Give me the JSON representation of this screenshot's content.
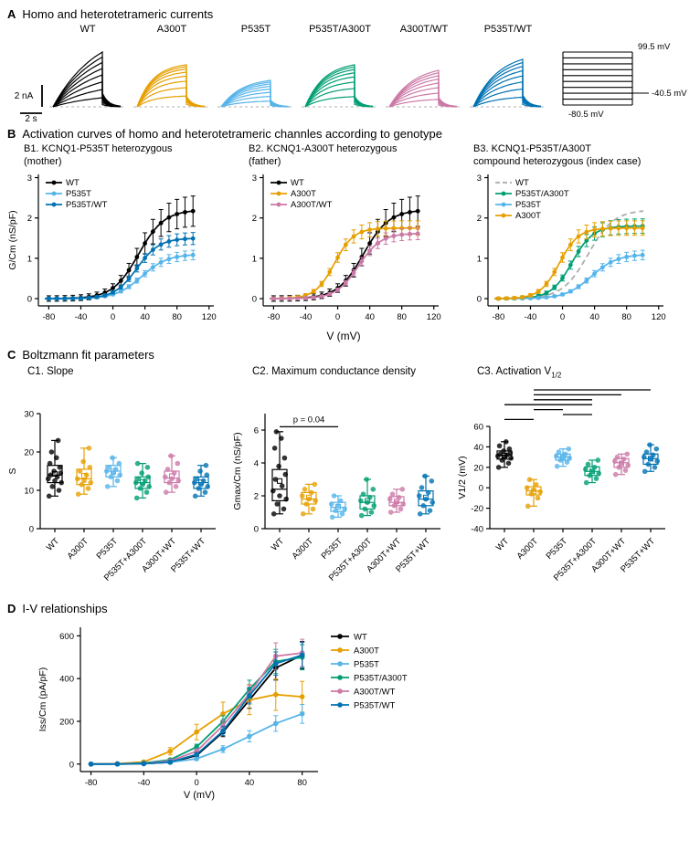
{
  "figure": {
    "panels": {
      "A": {
        "label": "A",
        "title": "Homo and heterotetrameric currents"
      },
      "B": {
        "label": "B",
        "title": "Activation curves of homo and heterotetrameric channles according to genotype"
      },
      "C": {
        "label": "C",
        "title": "Boltzmann fit parameters"
      },
      "D": {
        "label": "D",
        "title": "I-V relationships"
      }
    }
  },
  "colors": {
    "WT": "#000000",
    "A300T": "#E69F00",
    "P535T": "#56B4E9",
    "P535T/A300T": "#009E73",
    "A300T/WT": "#CC79A7",
    "P535T/WT": "#0072B2",
    "WT_dashed": "#A9A9A9"
  },
  "panel_a": {
    "scalebar": {
      "v": "2 nA",
      "h": "2 s"
    },
    "traces": [
      {
        "label": "WT",
        "color": "#000000",
        "amp": 60,
        "tau": 0.9,
        "bunch": 1.5,
        "n": 8
      },
      {
        "label": "A300T",
        "color": "#E69F00",
        "amp": 46,
        "tau": 0.33,
        "bunch": 0.5,
        "n": 8
      },
      {
        "label": "P535T",
        "color": "#56B4E9",
        "amp": 29,
        "tau": 0.42,
        "bunch": 0.7,
        "n": 8
      },
      {
        "label": "P535T/A300T",
        "color": "#009E73",
        "amp": 46,
        "tau": 0.38,
        "bunch": 0.55,
        "n": 8
      },
      {
        "label": "A300T/WT",
        "color": "#CC79A7",
        "amp": 40,
        "tau": 0.5,
        "bunch": 0.8,
        "n": 8
      },
      {
        "label": "P535T/WT",
        "color": "#0072B2",
        "amp": 52,
        "tau": 0.5,
        "bunch": 0.8,
        "n": 8
      }
    ],
    "protocol": {
      "top": "99.5 mV",
      "tail": "-40.5 mV",
      "bottom": "-80.5 mV"
    }
  },
  "chart_data": [
    {
      "id": "B1",
      "type": "activation",
      "title_lines": [
        "B1. KCNQ1-P535T heterozygous",
        "(mother)"
      ],
      "xlabel": "V (mV)",
      "ylabel": "G/Cm (nS/pF)",
      "xlim": [
        -93,
        126
      ],
      "ylim": [
        -0.18,
        3.08
      ],
      "xticks": [
        -80,
        -40,
        0,
        40,
        80,
        120
      ],
      "yticks": [
        0,
        1,
        2,
        3
      ],
      "x": [
        -80,
        -60,
        -40,
        -20,
        0,
        20,
        40,
        60,
        80,
        100
      ],
      "series": [
        {
          "label": "WT",
          "color": "#000000",
          "gmax": 2.2,
          "v_half": 32,
          "k": 16,
          "err": 0.38,
          "y": [
            0,
            0.01,
            0.02,
            0.08,
            0.26,
            0.71,
            1.37,
            1.87,
            2.1,
            2.17
          ]
        },
        {
          "label": "P535T",
          "color": "#56B4E9",
          "gmax": 1.1,
          "v_half": 36,
          "k": 16,
          "err": 0.12,
          "y": [
            0,
            0,
            0.01,
            0.03,
            0.1,
            0.3,
            0.62,
            0.9,
            1.03,
            1.08
          ]
        },
        {
          "label": "P535T/WT",
          "color": "#0072B2",
          "gmax": 1.5,
          "v_half": 30,
          "k": 14,
          "err": 0.15,
          "y": [
            0,
            0,
            0.01,
            0.04,
            0.16,
            0.49,
            1.01,
            1.34,
            1.46,
            1.49
          ]
        }
      ]
    },
    {
      "id": "B2",
      "type": "activation",
      "title_lines": [
        "B2. KCNQ1-A300T heterozygous",
        "(father)"
      ],
      "xlabel": "V (mV)",
      "ylabel": "",
      "xlim": [
        -93,
        126
      ],
      "ylim": [
        -0.18,
        3.08
      ],
      "xticks": [
        -80,
        -40,
        0,
        40,
        80,
        120
      ],
      "yticks": [
        0,
        1,
        2,
        3
      ],
      "x": [
        -80,
        -60,
        -40,
        -20,
        0,
        20,
        40,
        60,
        80,
        100
      ],
      "series": [
        {
          "label": "WT",
          "color": "#000000",
          "gmax": 2.2,
          "v_half": 32,
          "k": 16,
          "err": 0.38,
          "y": [
            0,
            0.01,
            0.02,
            0.08,
            0.26,
            0.71,
            1.37,
            1.87,
            2.1,
            2.17
          ]
        },
        {
          "label": "A300T",
          "color": "#E69F00",
          "gmax": 1.75,
          "v_half": -4,
          "k": 12,
          "err": 0.18,
          "y": [
            0,
            0.02,
            0.08,
            0.37,
            1.02,
            1.54,
            1.71,
            1.74,
            1.75,
            1.75
          ]
        },
        {
          "label": "A300T/WT",
          "color": "#CC79A7",
          "gmax": 1.62,
          "v_half": 26,
          "k": 14,
          "err": 0.15,
          "y": [
            0,
            0,
            0.01,
            0.06,
            0.22,
            0.64,
            1.18,
            1.49,
            1.59,
            1.61
          ]
        }
      ]
    },
    {
      "id": "B3",
      "type": "activation",
      "title_lines": [
        "B3. KCNQ1-P535T/A300T",
        "compound heterozygous (index case)"
      ],
      "xlabel": "V (mV)",
      "ylabel": "",
      "xlim": [
        -93,
        126
      ],
      "ylim": [
        -0.18,
        3.08
      ],
      "xticks": [
        -80,
        -40,
        0,
        40,
        80,
        120
      ],
      "yticks": [
        0,
        1,
        2,
        3
      ],
      "x": [
        -80,
        -60,
        -40,
        -20,
        0,
        20,
        40,
        60,
        80,
        100
      ],
      "series": [
        {
          "label": "WT",
          "color": "#A9A9A9",
          "dashed": true,
          "no_marker": true,
          "gmax": 2.2,
          "v_half": 32,
          "k": 16,
          "err": 0,
          "y": [
            0,
            0.01,
            0.02,
            0.08,
            0.26,
            0.71,
            1.37,
            1.87,
            2.1,
            2.17
          ]
        },
        {
          "label": "P535T/A300T",
          "color": "#009E73",
          "gmax": 1.8,
          "v_half": 12,
          "k": 13,
          "err": 0.18,
          "y": [
            0,
            0.01,
            0.03,
            0.14,
            0.51,
            1.17,
            1.61,
            1.76,
            1.79,
            1.8
          ]
        },
        {
          "label": "P535T",
          "color": "#56B4E9",
          "gmax": 1.1,
          "v_half": 36,
          "k": 16,
          "err": 0.12,
          "y": [
            0,
            0,
            0.01,
            0.03,
            0.1,
            0.3,
            0.62,
            0.9,
            1.03,
            1.08
          ]
        },
        {
          "label": "A300T",
          "color": "#E69F00",
          "gmax": 1.75,
          "v_half": -4,
          "k": 12,
          "err": 0.18,
          "y": [
            0,
            0.02,
            0.08,
            0.37,
            1.02,
            1.54,
            1.71,
            1.74,
            1.75,
            1.75
          ]
        }
      ]
    },
    {
      "id": "C1",
      "type": "box",
      "title": "C1. Slope",
      "ylabel": "S",
      "ylim": [
        0,
        30
      ],
      "yticks": [
        0,
        10,
        20,
        30
      ],
      "top_margin": 34,
      "categories": [
        "WT",
        "A300T",
        "P535T",
        "P535T+A300T",
        "A300T+WT",
        "P535T+WT"
      ],
      "colors": [
        "#000000",
        "#E69F00",
        "#56B4E9",
        "#009E73",
        "#CC79A7",
        "#0072B2"
      ],
      "groups": [
        {
          "lo": 8.5,
          "q1": 12,
          "med": 14,
          "q3": 16.5,
          "hi": 23,
          "mean": 14.3,
          "points": [
            8.5,
            10,
            11,
            12,
            12.5,
            13,
            13.5,
            14,
            14.5,
            15,
            16,
            17,
            18.5,
            20,
            23
          ]
        },
        {
          "lo": 9,
          "q1": 11.5,
          "med": 13,
          "q3": 15.5,
          "hi": 21,
          "mean": 13.8,
          "points": [
            9,
            10.5,
            11.5,
            12,
            12.5,
            13,
            14,
            15,
            16,
            17.5,
            21
          ]
        },
        {
          "lo": 11,
          "q1": 13.5,
          "med": 15,
          "q3": 16.5,
          "hi": 18.5,
          "mean": 14.9,
          "points": [
            11,
            12.5,
            13.5,
            14,
            14.5,
            15,
            15.5,
            16,
            17,
            18.5
          ]
        },
        {
          "lo": 8,
          "q1": 10.5,
          "med": 12,
          "q3": 13.5,
          "hi": 17,
          "mean": 12.2,
          "points": [
            8,
            9.5,
            10.5,
            11,
            11.5,
            12,
            12.5,
            13,
            13.5,
            14.5,
            16,
            17
          ]
        },
        {
          "lo": 9.5,
          "q1": 12,
          "med": 13.2,
          "q3": 15,
          "hi": 19,
          "mean": 13.7,
          "points": [
            9.5,
            11,
            12,
            12.5,
            13,
            13.5,
            14.5,
            15.5,
            17,
            19
          ]
        },
        {
          "lo": 8.5,
          "q1": 10.5,
          "med": 12,
          "q3": 13.5,
          "hi": 16.5,
          "mean": 12.1,
          "points": [
            8.5,
            9.5,
            10.5,
            11,
            11.5,
            12,
            12.5,
            13,
            14,
            15,
            16.5
          ]
        }
      ]
    },
    {
      "id": "C2",
      "type": "box",
      "title": "C2. Maximum conductance density",
      "ylabel": "Gmax/Cm (nS/pF)",
      "ylim": [
        0,
        7
      ],
      "yticks": [
        0,
        2,
        4,
        6
      ],
      "top_margin": 34,
      "categories": [
        "WT",
        "A300T",
        "P535T",
        "P535T+A300T",
        "A300T+WT",
        "P535T+WT"
      ],
      "colors": [
        "#000000",
        "#E69F00",
        "#56B4E9",
        "#009E73",
        "#CC79A7",
        "#0072B2"
      ],
      "p_bar": {
        "text": "p = 0.04",
        "from": 1,
        "to": 3,
        "y": 6.2
      },
      "groups": [
        {
          "lo": 0.9,
          "q1": 1.7,
          "med": 2.4,
          "q3": 3.6,
          "hi": 5.9,
          "mean": 2.9,
          "points": [
            0.9,
            1.2,
            1.5,
            1.8,
            2.0,
            2.3,
            2.6,
            3.0,
            3.3,
            3.8,
            4.3,
            4.9,
            5.5,
            5.9
          ]
        },
        {
          "lo": 0.9,
          "q1": 1.5,
          "med": 1.8,
          "q3": 2.2,
          "hi": 2.7,
          "mean": 1.9,
          "points": [
            0.9,
            1.2,
            1.5,
            1.7,
            1.8,
            2.0,
            2.2,
            2.4,
            2.7
          ]
        },
        {
          "lo": 0.7,
          "q1": 1.05,
          "med": 1.3,
          "q3": 1.6,
          "hi": 2.0,
          "mean": 1.33,
          "points": [
            0.7,
            0.9,
            1.1,
            1.2,
            1.4,
            1.5,
            1.7,
            2.0
          ]
        },
        {
          "lo": 0.8,
          "q1": 1.2,
          "med": 1.6,
          "q3": 2.0,
          "hi": 3.0,
          "mean": 1.7,
          "points": [
            0.8,
            1.0,
            1.2,
            1.4,
            1.6,
            1.7,
            1.9,
            2.1,
            2.4,
            3.0
          ]
        },
        {
          "lo": 1.0,
          "q1": 1.4,
          "med": 1.6,
          "q3": 1.95,
          "hi": 2.4,
          "mean": 1.66,
          "points": [
            1.0,
            1.2,
            1.4,
            1.5,
            1.6,
            1.8,
            1.9,
            2.1,
            2.4
          ]
        },
        {
          "lo": 0.9,
          "q1": 1.4,
          "med": 1.8,
          "q3": 2.3,
          "hi": 3.2,
          "mean": 1.9,
          "points": [
            0.9,
            1.1,
            1.4,
            1.6,
            1.8,
            2.0,
            2.2,
            2.5,
            2.9,
            3.2
          ]
        }
      ]
    },
    {
      "id": "C3",
      "type": "box",
      "title_prefix": "C3. Activation V",
      "title_sub": "1/2",
      "ylabel": "V1/2 (mV)",
      "ylim": [
        -40,
        60
      ],
      "yticks": [
        -40,
        -20,
        0,
        20,
        40,
        60
      ],
      "top_margin": 48,
      "categories": [
        "WT",
        "A300T",
        "P535T",
        "P535T+A300T",
        "A300T+WT",
        "P535T+WT"
      ],
      "colors": [
        "#000000",
        "#E69F00",
        "#56B4E9",
        "#009E73",
        "#CC79A7",
        "#0072B2"
      ],
      "sig_bars": [
        [
          2,
          6
        ],
        [
          2,
          5
        ],
        [
          2,
          4
        ],
        [
          1,
          4
        ],
        [
          2,
          3
        ],
        [
          3,
          4
        ],
        [
          1,
          2
        ]
      ],
      "groups": [
        {
          "lo": 20,
          "q1": 28,
          "med": 32,
          "q3": 36,
          "hi": 45,
          "mean": 31.5,
          "points": [
            20,
            24,
            27,
            29,
            30,
            31,
            32,
            33,
            34,
            36,
            38,
            41,
            45
          ]
        },
        {
          "lo": -18,
          "q1": -7,
          "med": -3,
          "q3": 1,
          "hi": 8,
          "mean": -3.6,
          "points": [
            -18,
            -10,
            -6,
            -4,
            -2,
            0,
            3,
            8
          ]
        },
        {
          "lo": 21,
          "q1": 27,
          "med": 30,
          "q3": 33,
          "hi": 38,
          "mean": 29.9,
          "points": [
            21,
            25,
            27,
            29,
            30,
            31,
            33,
            35,
            38
          ]
        },
        {
          "lo": 5,
          "q1": 12,
          "med": 16,
          "q3": 20.5,
          "hi": 27,
          "mean": 16.0,
          "points": [
            5,
            9,
            12,
            14,
            16,
            18,
            20,
            23,
            27
          ]
        },
        {
          "lo": 13,
          "q1": 20,
          "med": 24.5,
          "q3": 28.5,
          "hi": 33,
          "mean": 23.7,
          "points": [
            13,
            17,
            20,
            22,
            24,
            26,
            28,
            30,
            33
          ]
        },
        {
          "lo": 16,
          "q1": 23,
          "med": 28.5,
          "q3": 33,
          "hi": 42,
          "mean": 28.5,
          "points": [
            16,
            20,
            23,
            26,
            28,
            30,
            32,
            35,
            38,
            42
          ]
        }
      ]
    },
    {
      "id": "D",
      "type": "iv",
      "ylabel": "Iss/Cm (pA/pF)",
      "xlabel": "V (mV)",
      "xlim": [
        -88,
        92
      ],
      "ylim": [
        -35,
        640
      ],
      "xticks": [
        -80,
        -40,
        0,
        40,
        80
      ],
      "yticks": [
        0,
        200,
        400,
        600
      ],
      "x": [
        -80,
        -60,
        -40,
        -20,
        0,
        20,
        40,
        60,
        80
      ],
      "series": [
        {
          "label": "WT",
          "color": "#000000",
          "err": 60,
          "y": [
            0,
            1,
            2,
            8,
            40,
            150,
            300,
            450,
            510
          ]
        },
        {
          "label": "A300T",
          "color": "#E69F00",
          "err": 70,
          "y": [
            0,
            2,
            10,
            60,
            150,
            235,
            300,
            325,
            315
          ]
        },
        {
          "label": "P535T",
          "color": "#56B4E9",
          "err": 40,
          "y": [
            0,
            0,
            2,
            8,
            25,
            70,
            130,
            190,
            235
          ]
        },
        {
          "label": "P535T/A300T",
          "color": "#009E73",
          "err": 55,
          "y": [
            0,
            1,
            5,
            20,
            80,
            200,
            350,
            480,
            500
          ]
        },
        {
          "label": "A300T/WT",
          "color": "#CC79A7",
          "err": 60,
          "y": [
            0,
            1,
            3,
            15,
            60,
            180,
            330,
            505,
            520
          ]
        },
        {
          "label": "P535T/WT",
          "color": "#0072B2",
          "err": 55,
          "y": [
            0,
            0,
            2,
            10,
            45,
            155,
            320,
            470,
            510
          ]
        }
      ]
    }
  ]
}
